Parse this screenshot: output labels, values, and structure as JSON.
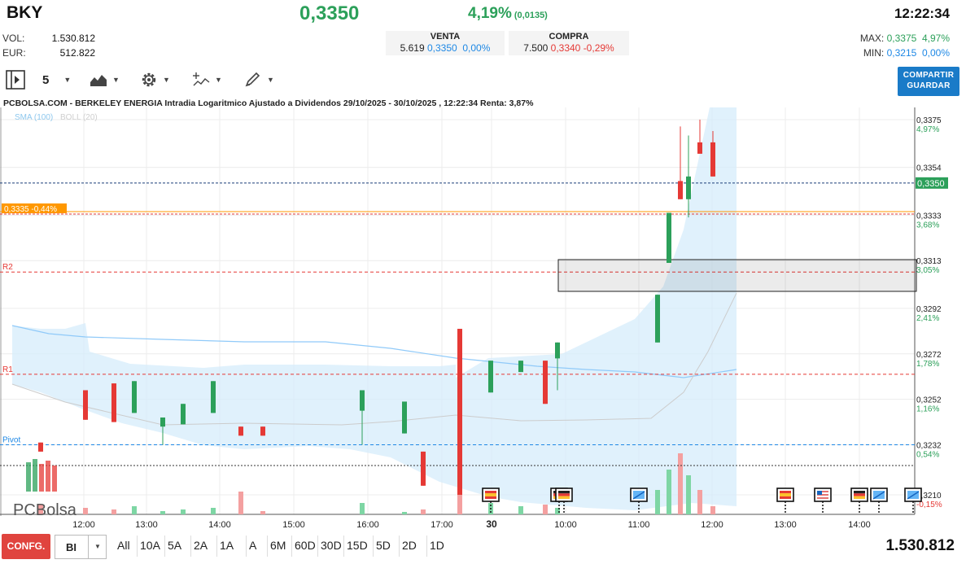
{
  "header": {
    "ticker": "BKY",
    "price": "0,3350",
    "change_pct": "4,19%",
    "change_abs": "(0,0135)",
    "time": "12:22:34"
  },
  "stats": {
    "vol_label": "VOL:",
    "vol_value": "1.530.812",
    "eur_label": "EUR:",
    "eur_value": "512.822"
  },
  "venta": {
    "label": "VENTA",
    "qty": "5.619",
    "price": "0,3350",
    "pct": "0,00%"
  },
  "compra": {
    "label": "COMPRA",
    "qty": "7.500",
    "price": "0,3340",
    "pct": "-0,29%"
  },
  "maxmin": {
    "max_label": "MAX:",
    "max_value": "0,3375",
    "max_pct": "4,97%",
    "min_label": "MIN:",
    "min_value": "0,3215",
    "min_pct": "0,00%"
  },
  "toolbar": {
    "interval": "5"
  },
  "share_button": {
    "line1": "COMPARTIR",
    "line2": "GUARDAR"
  },
  "chart_title": "PCBOLSA.COM - BERKELEY ENERGIA Intradia Logaritmico Ajustado a Dividendos 29/10/2025 - 30/10/2025 , 12:22:34 Renta: 3,87%",
  "chart_data": {
    "type": "candlestick",
    "indicators": [
      "SMA (100)",
      "BOLL (20)"
    ],
    "y_ticks": [
      {
        "price": 0.3375,
        "label": "0,3375",
        "pct": "4,97%"
      },
      {
        "price": 0.3354,
        "label": "0,3354",
        "pct": ""
      },
      {
        "price": 0.3333,
        "label": "0,3333",
        "pct": "3,68%"
      },
      {
        "price": 0.3313,
        "label": "0,3313",
        "pct": "3,05%"
      },
      {
        "price": 0.3292,
        "label": "0,3292",
        "pct": "2,41%"
      },
      {
        "price": 0.3272,
        "label": "0,3272",
        "pct": "1,78%"
      },
      {
        "price": 0.3252,
        "label": "0,3252",
        "pct": "1,16%"
      },
      {
        "price": 0.3232,
        "label": "0,3232",
        "pct": "0,54%"
      },
      {
        "price": 0.321,
        "label": "0,3210",
        "pct": "-0,15%"
      }
    ],
    "x_ticks": [
      "12:00",
      "13:00",
      "14:00",
      "15:00",
      "16:00",
      "17:00",
      "30",
      "10:00",
      "11:00",
      "12:00",
      "13:00",
      "14:00"
    ],
    "last_price_label": "0,3350",
    "reference_label": "0,3335",
    "reference_pct": "-0,44%",
    "levels": [
      {
        "name": "R2",
        "price": 0.3308,
        "color": "#e53935"
      },
      {
        "name": "R1",
        "price": 0.3263,
        "color": "#e53935"
      },
      {
        "name": "Pivot",
        "price": 0.3232,
        "color": "#1e88e5"
      }
    ],
    "candles": [
      {
        "o": 0.3233,
        "h": 0.3233,
        "l": 0.3229,
        "c": 0.3229
      },
      {
        "o": 0.3256,
        "h": 0.3256,
        "l": 0.3243,
        "c": 0.3243
      },
      {
        "o": 0.3259,
        "h": 0.3259,
        "l": 0.3242,
        "c": 0.3242
      },
      {
        "o": 0.3246,
        "h": 0.326,
        "l": 0.3246,
        "c": 0.326
      },
      {
        "o": 0.324,
        "h": 0.3244,
        "l": 0.3232,
        "c": 0.3244
      },
      {
        "o": 0.3241,
        "h": 0.325,
        "l": 0.3241,
        "c": 0.325
      },
      {
        "o": 0.3246,
        "h": 0.326,
        "l": 0.3246,
        "c": 0.326
      },
      {
        "o": 0.324,
        "h": 0.324,
        "l": 0.3236,
        "c": 0.3236
      },
      {
        "o": 0.324,
        "h": 0.324,
        "l": 0.3236,
        "c": 0.3236
      },
      {
        "o": 0.3247,
        "h": 0.3256,
        "l": 0.3232,
        "c": 0.3256
      },
      {
        "o": 0.3237,
        "h": 0.3251,
        "l": 0.3237,
        "c": 0.3251
      },
      {
        "o": 0.3229,
        "h": 0.3229,
        "l": 0.3214,
        "c": 0.3214
      },
      {
        "o": 0.3283,
        "h": 0.3283,
        "l": 0.321,
        "c": 0.321
      },
      {
        "o": 0.3255,
        "h": 0.3269,
        "l": 0.3255,
        "c": 0.3269
      },
      {
        "o": 0.3264,
        "h": 0.3269,
        "l": 0.3264,
        "c": 0.3269
      },
      {
        "o": 0.3269,
        "h": 0.3269,
        "l": 0.325,
        "c": 0.325
      },
      {
        "o": 0.327,
        "h": 0.3277,
        "l": 0.3256,
        "c": 0.3277
      },
      {
        "o": 0.3277,
        "h": 0.3298,
        "l": 0.3277,
        "c": 0.3298
      },
      {
        "o": 0.3312,
        "h": 0.3334,
        "l": 0.3312,
        "c": 0.3334
      },
      {
        "o": 0.3348,
        "h": 0.3372,
        "l": 0.334,
        "c": 0.334
      },
      {
        "o": 0.334,
        "h": 0.3368,
        "l": 0.3332,
        "c": 0.335
      },
      {
        "o": 0.3365,
        "h": 0.3375,
        "l": 0.336,
        "c": 0.336
      },
      {
        "o": 0.3365,
        "h": 0.337,
        "l": 0.335,
        "c": 0.335
      }
    ],
    "volume": [
      12,
      8,
      6,
      10,
      4,
      6,
      8,
      28,
      4,
      14,
      3,
      6,
      40,
      14,
      10,
      12,
      8,
      30,
      55,
      75,
      48,
      30,
      10
    ]
  },
  "bottom": {
    "config_label": "CONFG.",
    "style_value": "BI",
    "ranges": [
      "All",
      "10A",
      "5A",
      "2A",
      "1A",
      "A",
      "6M",
      "60D",
      "30D",
      "15D",
      "5D",
      "2D",
      "1D"
    ],
    "volume_total": "1.530.812"
  },
  "logo_text": "PCBolsa",
  "colors": {
    "up": "#2ca05a",
    "down": "#e53935",
    "accent": "#1a7bc8",
    "band": "#d6ecfb"
  }
}
